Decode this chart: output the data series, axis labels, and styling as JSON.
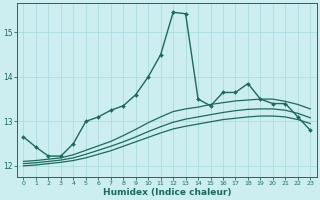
{
  "xlabel": "Humidex (Indice chaleur)",
  "background_color": "#cceef0",
  "grid_color": "#aadddd",
  "line_color": "#1a6b5a",
  "xlim": [
    -0.5,
    23.5
  ],
  "ylim": [
    11.75,
    15.65
  ],
  "yticks": [
    12,
    13,
    14,
    15
  ],
  "xticks": [
    0,
    1,
    2,
    3,
    4,
    5,
    6,
    7,
    8,
    9,
    10,
    11,
    12,
    13,
    14,
    15,
    16,
    17,
    18,
    19,
    20,
    21,
    22,
    23
  ],
  "series": [
    {
      "x": [
        0,
        1,
        2,
        3,
        4,
        5,
        6,
        7,
        8,
        9,
        10,
        11,
        12,
        13,
        14,
        15,
        16,
        17,
        18,
        19,
        20,
        21,
        22,
        23
      ],
      "y": [
        12.65,
        12.42,
        12.22,
        12.22,
        12.5,
        13.0,
        13.1,
        13.25,
        13.35,
        13.6,
        14.0,
        14.5,
        15.45,
        15.42,
        13.5,
        13.35,
        13.65,
        13.65,
        13.85,
        13.5,
        13.4,
        13.4,
        13.1,
        12.8
      ],
      "marker": "D",
      "markersize": 2.0,
      "linewidth": 1.0,
      "has_marker": true
    },
    {
      "x": [
        0,
        1,
        2,
        3,
        4,
        5,
        6,
        7,
        8,
        9,
        10,
        11,
        12,
        13,
        14,
        15,
        16,
        17,
        18,
        19,
        20,
        21,
        22,
        23
      ],
      "y": [
        12.1,
        12.12,
        12.15,
        12.18,
        12.25,
        12.35,
        12.45,
        12.55,
        12.68,
        12.82,
        12.97,
        13.1,
        13.22,
        13.28,
        13.32,
        13.38,
        13.42,
        13.46,
        13.48,
        13.5,
        13.5,
        13.45,
        13.38,
        13.28
      ],
      "marker": null,
      "markersize": 0,
      "linewidth": 0.9,
      "has_marker": false
    },
    {
      "x": [
        0,
        1,
        2,
        3,
        4,
        5,
        6,
        7,
        8,
        9,
        10,
        11,
        12,
        13,
        14,
        15,
        16,
        17,
        18,
        19,
        20,
        21,
        22,
        23
      ],
      "y": [
        12.05,
        12.07,
        12.1,
        12.13,
        12.18,
        12.26,
        12.35,
        12.44,
        12.54,
        12.65,
        12.77,
        12.88,
        12.98,
        13.05,
        13.1,
        13.15,
        13.2,
        13.24,
        13.27,
        13.28,
        13.28,
        13.25,
        13.18,
        13.08
      ],
      "marker": null,
      "markersize": 0,
      "linewidth": 0.9,
      "has_marker": false
    },
    {
      "x": [
        0,
        1,
        2,
        3,
        4,
        5,
        6,
        7,
        8,
        9,
        10,
        11,
        12,
        13,
        14,
        15,
        16,
        17,
        18,
        19,
        20,
        21,
        22,
        23
      ],
      "y": [
        12.0,
        12.02,
        12.05,
        12.08,
        12.12,
        12.18,
        12.26,
        12.34,
        12.44,
        12.54,
        12.64,
        12.74,
        12.83,
        12.89,
        12.94,
        12.99,
        13.04,
        13.07,
        13.1,
        13.12,
        13.12,
        13.1,
        13.04,
        12.95
      ],
      "marker": null,
      "markersize": 0,
      "linewidth": 0.9,
      "has_marker": false
    }
  ]
}
